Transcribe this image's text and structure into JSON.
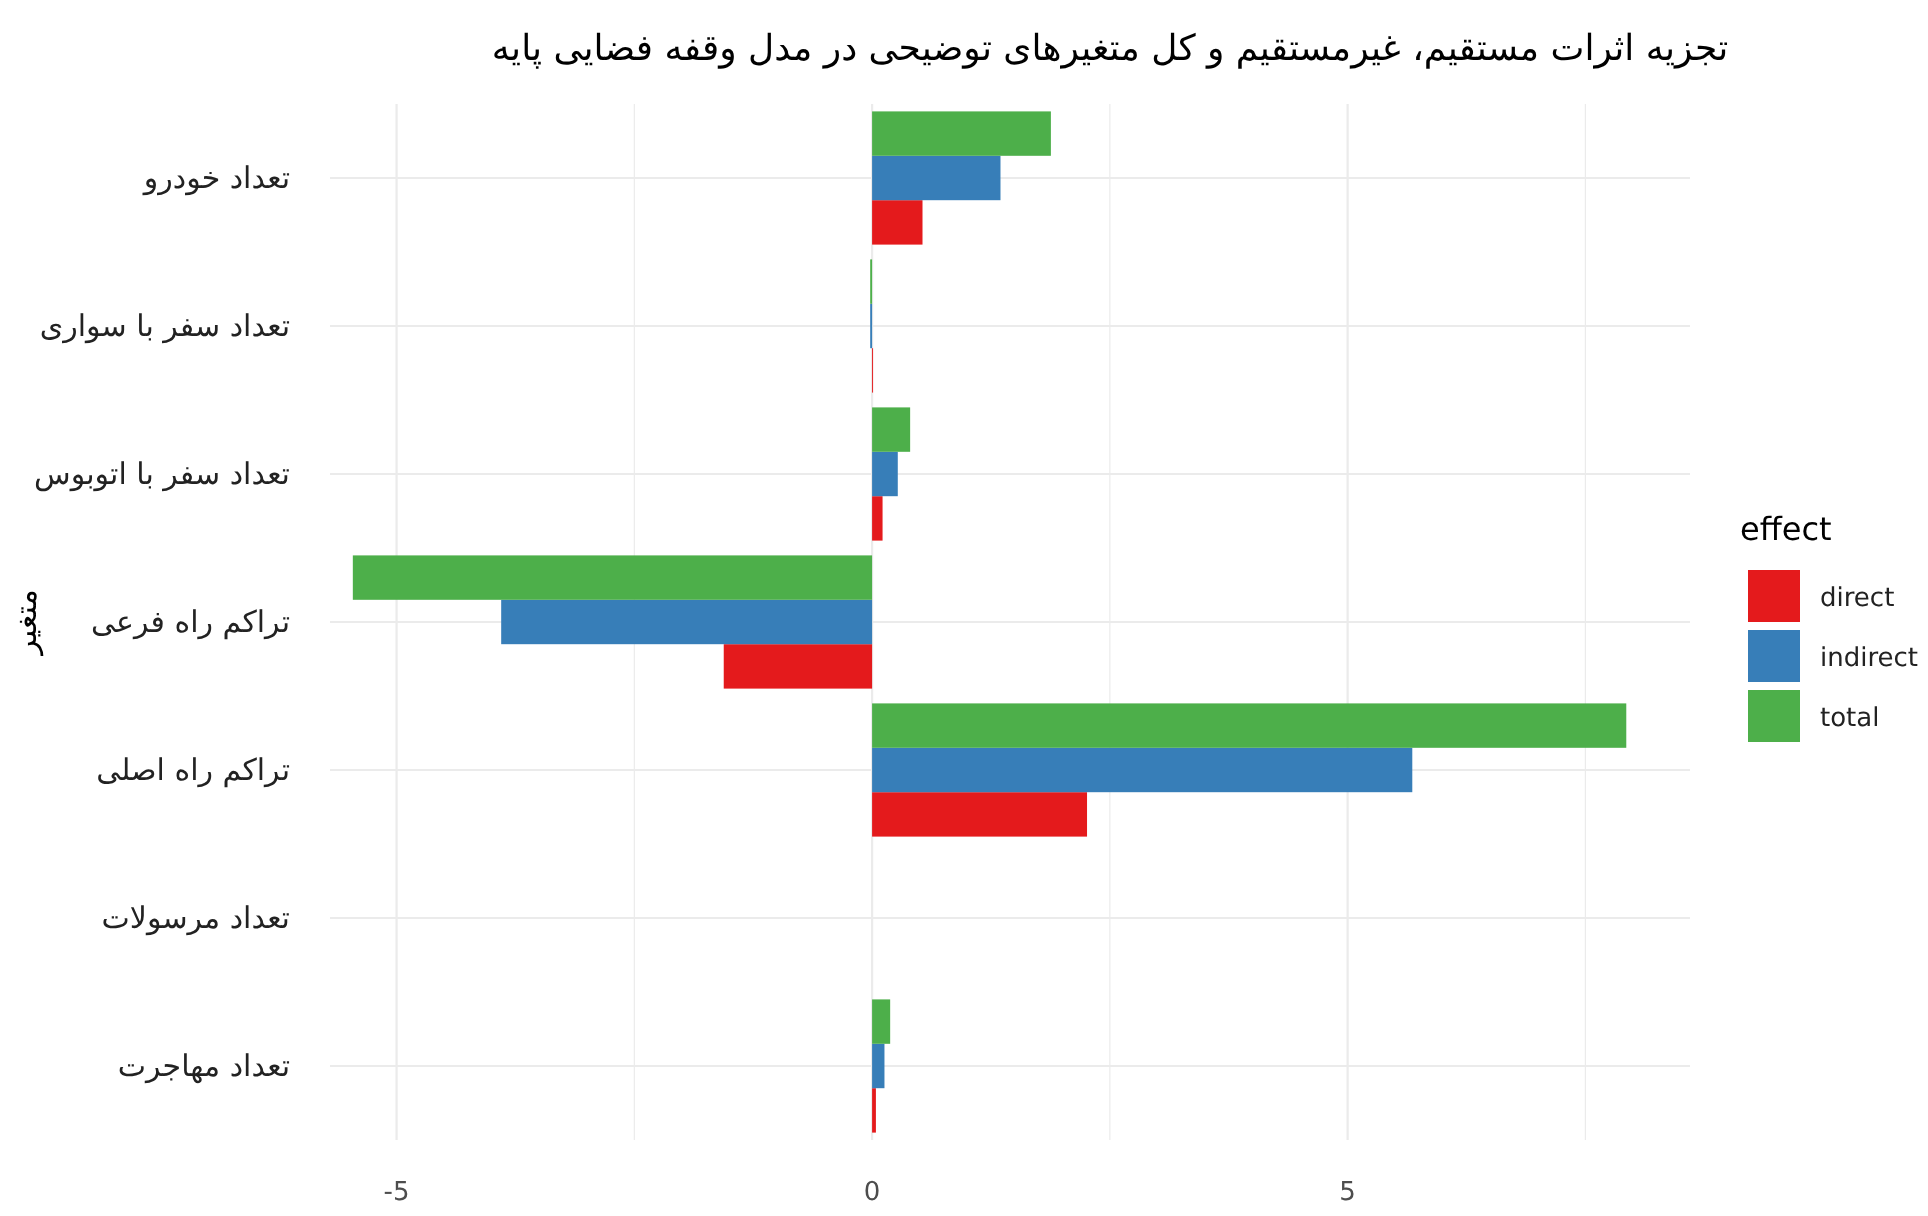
{
  "chart_data": {
    "type": "bar",
    "orientation": "horizontal",
    "title": "تجزیه اثرات مستقیم، غیرمستقیم و کل متغیرهای توضیحی در مدل وقفه فضایی پایه",
    "ylabel": "متغیر",
    "legend_title": "effect",
    "legend": "right",
    "grid": true,
    "categories": [
      "تعداد خودرو",
      "تعداد سفر با سواری",
      "تعداد سفر با اتوبوس",
      "تراکم راه فرعی",
      "تراکم راه اصلی",
      "تعداد مرسولات",
      "تعداد مهاجرت"
    ],
    "xlim": [
      -5.7,
      8.6
    ],
    "xticks": [
      -5,
      {
        "value": -2.5,
        "label": null
      },
      0,
      {
        "value": 2.5,
        "label": null
      },
      5,
      {
        "value": 7.5,
        "label": null
      }
    ],
    "series": [
      {
        "name": "direct",
        "color": "#e41a1c",
        "values": [
          0.53,
          0.01,
          0.11,
          -1.56,
          2.26,
          0,
          0.04
        ]
      },
      {
        "name": "indirect",
        "color": "#377eb8",
        "values": [
          1.35,
          -0.02,
          0.27,
          -3.9,
          5.68,
          0,
          0.13
        ]
      },
      {
        "name": "total",
        "color": "#4daf4a",
        "values": [
          1.88,
          -0.02,
          0.4,
          -5.46,
          7.93,
          0,
          0.19
        ]
      }
    ]
  }
}
